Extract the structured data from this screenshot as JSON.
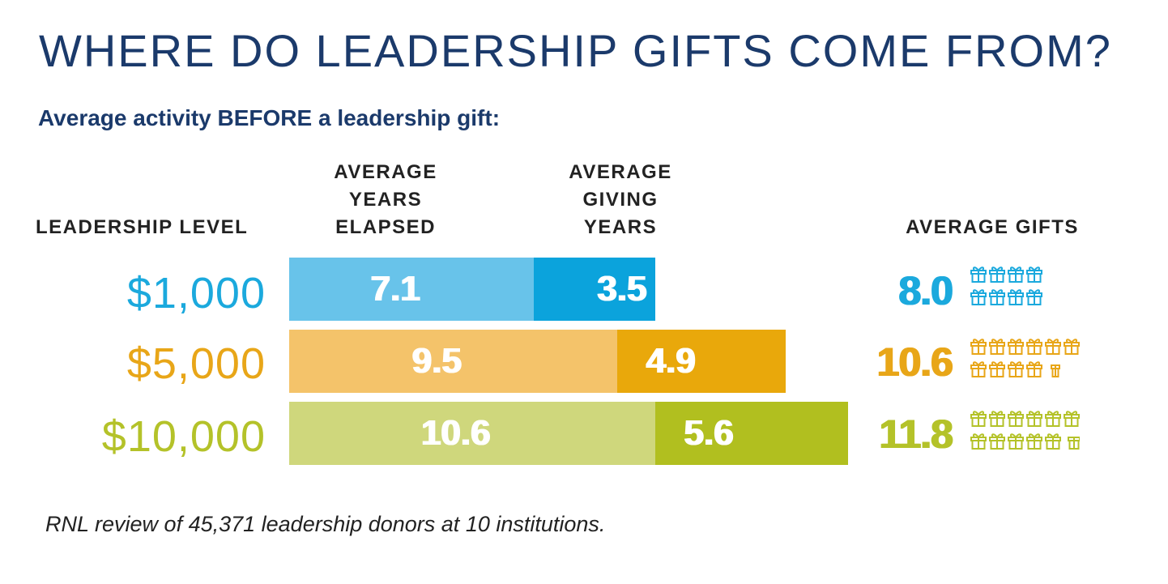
{
  "title": "WHERE DO LEADERSHIP GIFTS COME FROM?",
  "subtitle": "Average activity BEFORE a leadership gift:",
  "headers": {
    "level": "LEADERSHIP LEVEL",
    "years_elapsed": [
      "AVERAGE",
      "YEARS",
      "ELAPSED"
    ],
    "giving_years": [
      "AVERAGE",
      "GIVING",
      "YEARS"
    ],
    "gifts": "AVERAGE GIFTS"
  },
  "footnote": "RNL review of 45,371 leadership donors at 10 institutions.",
  "chart_data": {
    "type": "bar",
    "orientation": "horizontal",
    "stacked": true,
    "categories": [
      "$1,000",
      "$5,000",
      "$10,000"
    ],
    "series": [
      {
        "name": "AVERAGE YEARS ELAPSED",
        "values": [
          7.1,
          9.5,
          10.6
        ],
        "labels": [
          "7.1",
          "9.5",
          "10.6"
        ]
      },
      {
        "name": "AVERAGE GIVING YEARS",
        "values": [
          3.5,
          4.9,
          5.6
        ],
        "labels": [
          "3.5",
          "4.9",
          "5.6"
        ]
      }
    ],
    "average_gifts": {
      "name": "AVERAGE GIFTS",
      "values": [
        8.0,
        10.6,
        11.8
      ],
      "labels": [
        "8.0",
        "10.6",
        "11.8"
      ],
      "icon": "gift-icon"
    }
  },
  "colors": {
    "title": "#1b3a6b",
    "rows": [
      {
        "text": "#1ba9dd",
        "light": "#68c3ea",
        "dark": "#0ba3dc",
        "icon": "#1ba9dd"
      },
      {
        "text": "#e8a618",
        "light": "#f4c36a",
        "dark": "#e9a80b",
        "icon": "#e8a618"
      },
      {
        "text": "#b4c229",
        "light": "#cfd77c",
        "dark": "#b1bf1f",
        "icon": "#b4c229"
      }
    ]
  }
}
